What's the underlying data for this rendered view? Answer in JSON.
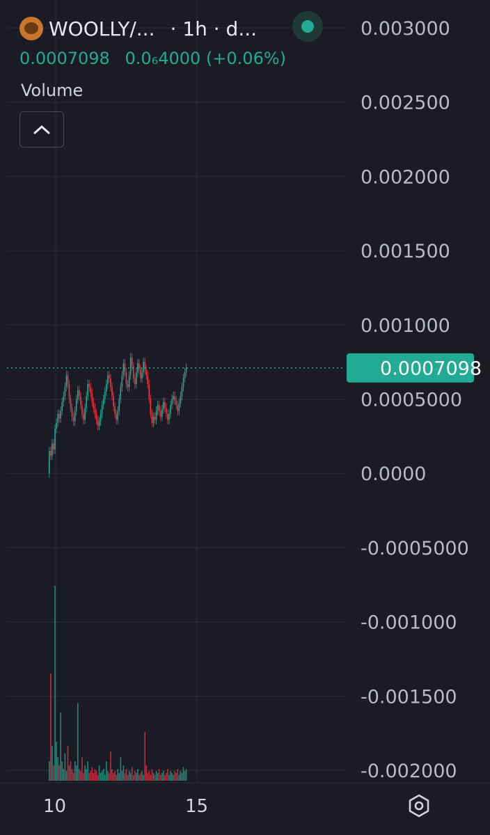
{
  "header": {
    "symbol": "WOOLLY/...",
    "interval": "· 1h · d...",
    "status_color": "#22ab94",
    "price": "0.0007098",
    "change": "0.0₆4000 (+0.06%)"
  },
  "volume_label": "Volume",
  "current_price_label": "0.0007098",
  "colors": {
    "background": "#1a1b24",
    "up": "#22ab94",
    "down": "#f23645",
    "grid": "#2a2d38",
    "axis_text": "#b8bbc6"
  },
  "chart_data": {
    "type": "candlestick",
    "title": "",
    "y_axis": {
      "min": -0.002,
      "max": 0.003,
      "ticks": [
        "0.003000",
        "0.002500",
        "0.002000",
        "0.001500",
        "0.001000",
        "0.0005000",
        "0.0000",
        "-0.0005000",
        "-0.001000",
        "-0.001500",
        "-0.002000"
      ]
    },
    "x_axis": {
      "ticks": [
        {
          "label": "10",
          "value": 10
        },
        {
          "label": "15",
          "value": 15
        }
      ]
    },
    "current_price": 0.0007098,
    "candles_open_close": [
      [
        0.0,
        0.00015
      ],
      [
        0.00015,
        0.00012
      ],
      [
        0.00012,
        0.0002
      ],
      [
        0.0002,
        0.00016
      ],
      [
        0.00016,
        0.0003
      ],
      [
        0.0003,
        0.00034
      ],
      [
        0.00034,
        0.0004
      ],
      [
        0.0004,
        0.00037
      ],
      [
        0.00037,
        0.00042
      ],
      [
        0.00042,
        0.00048
      ],
      [
        0.00048,
        0.00052
      ],
      [
        0.00052,
        0.00058
      ],
      [
        0.00058,
        0.00066
      ],
      [
        0.00066,
        0.0006
      ],
      [
        0.0006,
        0.0005
      ],
      [
        0.0005,
        0.00044
      ],
      [
        0.00044,
        0.00038
      ],
      [
        0.00038,
        0.00035
      ],
      [
        0.00035,
        0.00042
      ],
      [
        0.00042,
        0.0005
      ],
      [
        0.0005,
        0.00056
      ],
      [
        0.00056,
        0.00052
      ],
      [
        0.00052,
        0.00046
      ],
      [
        0.00046,
        0.0004
      ],
      [
        0.0004,
        0.00036
      ],
      [
        0.00036,
        0.00044
      ],
      [
        0.00044,
        0.00052
      ],
      [
        0.00052,
        0.0006
      ],
      [
        0.0006,
        0.00058
      ],
      [
        0.00058,
        0.00054
      ],
      [
        0.00054,
        0.00048
      ],
      [
        0.00048,
        0.00044
      ],
      [
        0.00044,
        0.0004
      ],
      [
        0.0004,
        0.00036
      ],
      [
        0.00036,
        0.00032
      ],
      [
        0.00032,
        0.00035
      ],
      [
        0.00035,
        0.0004
      ],
      [
        0.0004,
        0.00046
      ],
      [
        0.00046,
        0.0005
      ],
      [
        0.0005,
        0.00055
      ],
      [
        0.00055,
        0.0006
      ],
      [
        0.0006,
        0.00066
      ],
      [
        0.00066,
        0.00064
      ],
      [
        0.00064,
        0.00058
      ],
      [
        0.00058,
        0.00052
      ],
      [
        0.00052,
        0.00045
      ],
      [
        0.00045,
        0.0004
      ],
      [
        0.0004,
        0.00036
      ],
      [
        0.00036,
        0.00042
      ],
      [
        0.00042,
        0.0005
      ],
      [
        0.0005,
        0.00058
      ],
      [
        0.00058,
        0.00066
      ],
      [
        0.00066,
        0.00074
      ],
      [
        0.00074,
        0.00068
      ],
      [
        0.00068,
        0.0006
      ],
      [
        0.0006,
        0.00058
      ],
      [
        0.00058,
        0.00066
      ],
      [
        0.00066,
        0.00078
      ],
      [
        0.00078,
        0.00072
      ],
      [
        0.00072,
        0.00064
      ],
      [
        0.00064,
        0.0006
      ],
      [
        0.0006,
        0.00068
      ],
      [
        0.00068,
        0.00074
      ],
      [
        0.00074,
        0.0007
      ],
      [
        0.0007,
        0.00064
      ],
      [
        0.00064,
        0.00068
      ],
      [
        0.00068,
        0.00075
      ],
      [
        0.00075,
        0.0007
      ],
      [
        0.0007,
        0.00066
      ],
      [
        0.00066,
        0.0006
      ],
      [
        0.0006,
        0.0005
      ],
      [
        0.0005,
        0.0004
      ],
      [
        0.0004,
        0.00034
      ],
      [
        0.00034,
        0.00038
      ],
      [
        0.00038,
        0.00036
      ],
      [
        0.00036,
        0.00042
      ],
      [
        0.00042,
        0.00046
      ],
      [
        0.00046,
        0.00042
      ],
      [
        0.00042,
        0.00038
      ],
      [
        0.00038,
        0.00043
      ],
      [
        0.00043,
        0.00048
      ],
      [
        0.00048,
        0.00044
      ],
      [
        0.00044,
        0.0004
      ],
      [
        0.0004,
        0.00036
      ],
      [
        0.00036,
        0.0004
      ],
      [
        0.0004,
        0.00046
      ],
      [
        0.00046,
        0.0005
      ],
      [
        0.0005,
        0.00052
      ],
      [
        0.00052,
        0.00049
      ],
      [
        0.00049,
        0.00046
      ],
      [
        0.00046,
        0.00042
      ],
      [
        0.00042,
        0.00047
      ],
      [
        0.00047,
        0.00052
      ],
      [
        0.00052,
        0.00058
      ],
      [
        0.00058,
        0.00064
      ],
      [
        0.00064,
        0.00068
      ],
      [
        0.00068,
        0.00071
      ]
    ],
    "volume_relative": [
      0.1,
      0.55,
      0.18,
      0.08,
      1.0,
      0.2,
      0.12,
      0.08,
      0.35,
      0.1,
      0.06,
      0.14,
      0.05,
      0.18,
      0.08,
      0.1,
      0.06,
      0.04,
      0.1,
      0.08,
      0.4,
      0.06,
      0.05,
      0.12,
      0.04,
      0.08,
      0.06,
      0.1,
      0.04,
      0.05,
      0.07,
      0.04,
      0.06,
      0.05,
      0.03,
      0.08,
      0.04,
      0.05,
      0.06,
      0.03,
      0.1,
      0.05,
      0.04,
      0.15,
      0.06,
      0.04,
      0.05,
      0.03,
      0.06,
      0.04,
      0.12,
      0.05,
      0.08,
      0.04,
      0.06,
      0.03,
      0.05,
      0.04,
      0.07,
      0.03,
      0.05,
      0.04,
      0.06,
      0.03,
      0.04,
      0.05,
      0.03,
      0.25,
      0.08,
      0.04,
      0.05,
      0.03,
      0.06,
      0.04,
      0.03,
      0.05,
      0.04,
      0.06,
      0.03,
      0.04,
      0.05,
      0.03,
      0.04,
      0.06,
      0.03,
      0.05,
      0.04,
      0.03,
      0.05,
      0.04,
      0.06,
      0.03,
      0.05,
      0.04,
      0.07,
      0.05,
      0.06
    ]
  }
}
